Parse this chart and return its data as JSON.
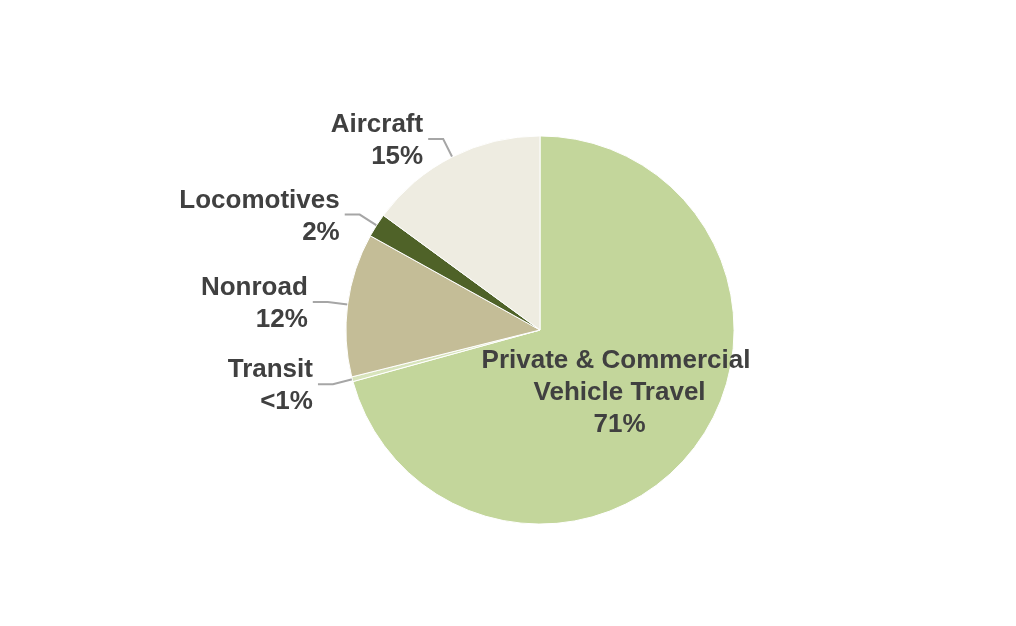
{
  "chart_data": {
    "type": "pie",
    "categories": [
      "Private & Commercial Vehicle Travel",
      "Transit",
      "Nonroad",
      "Locomotives",
      "Aircraft"
    ],
    "values": [
      71,
      0.4,
      12,
      2,
      15
    ],
    "value_labels": [
      "71%",
      "<1%",
      "12%",
      "2%",
      "15%"
    ],
    "colors": [
      "#c3d69b",
      "#d8e4bc",
      "#c4bd97",
      "#4f6228",
      "#eeece1"
    ],
    "legend": false
  }
}
